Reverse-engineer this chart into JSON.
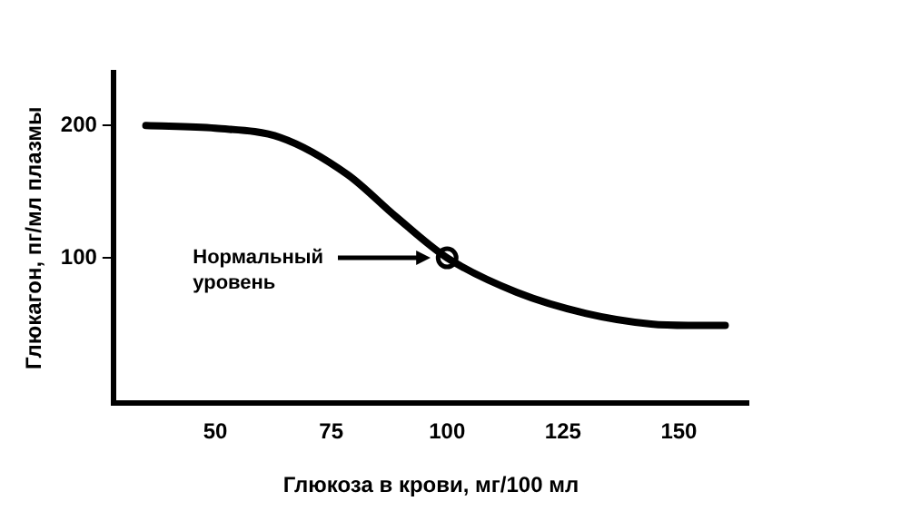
{
  "chart_data": {
    "type": "line",
    "xlabel": "Глюкоза в крови, мг/100 мл",
    "ylabel": "Глюкагон, пг/мл плазмы",
    "xlim": [
      28,
      165
    ],
    "xticks": [
      50,
      75,
      100,
      125,
      150
    ],
    "ylim": [
      -10,
      240
    ],
    "yticks": [
      100,
      200
    ],
    "grid": false,
    "legend": false,
    "marker": "none",
    "line_style": "solid",
    "series": [
      {
        "color": "#000000",
        "x": [
          35,
          50,
          64,
          78.5,
          89,
          100,
          115,
          130,
          144,
          152,
          160
        ],
        "values": [
          200,
          198,
          191,
          163,
          131,
          100,
          74,
          58,
          50,
          49,
          49
        ]
      },
      {
        "type": "scatter",
        "marker": "circle",
        "color": "#000000",
        "x": [
          100
        ],
        "values": [
          100
        ]
      }
    ],
    "annotations": [
      "Нормальный уровень"
    ]
  }
}
